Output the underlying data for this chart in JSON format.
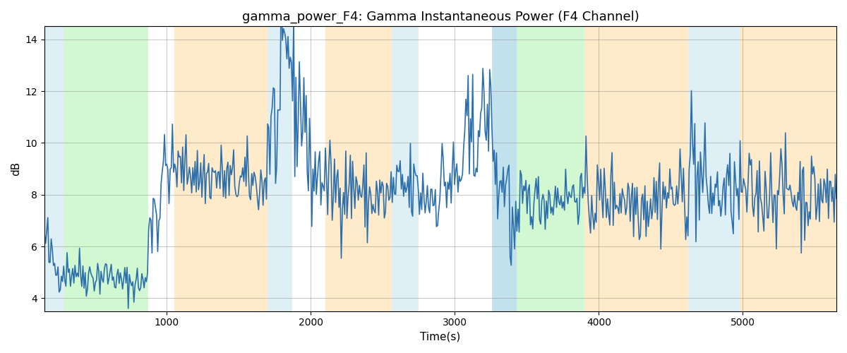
{
  "title": "gamma_power_F4: Gamma Instantaneous Power (F4 Channel)",
  "xlabel": "Time(s)",
  "ylabel": "dB",
  "ylim": [
    3.5,
    14.5
  ],
  "xlim": [
    150,
    5650
  ],
  "bg_regions": [
    {
      "xstart": 150,
      "xend": 290,
      "color": "#add8e6",
      "alpha": 0.4
    },
    {
      "xstart": 290,
      "xend": 870,
      "color": "#90ee90",
      "alpha": 0.4
    },
    {
      "xstart": 1050,
      "xend": 1700,
      "color": "#ffdaa0",
      "alpha": 0.55
    },
    {
      "xstart": 1700,
      "xend": 1870,
      "color": "#add8e6",
      "alpha": 0.4
    },
    {
      "xstart": 2100,
      "xend": 2560,
      "color": "#ffdaa0",
      "alpha": 0.55
    },
    {
      "xstart": 2560,
      "xend": 2750,
      "color": "#add8e6",
      "alpha": 0.4
    },
    {
      "xstart": 3260,
      "xend": 3430,
      "color": "#add8e6",
      "alpha": 0.75
    },
    {
      "xstart": 3430,
      "xend": 3900,
      "color": "#90ee90",
      "alpha": 0.4
    },
    {
      "xstart": 3900,
      "xend": 4150,
      "color": "#ffdaa0",
      "alpha": 0.55
    },
    {
      "xstart": 4150,
      "xend": 4620,
      "color": "#ffdaa0",
      "alpha": 0.55
    },
    {
      "xstart": 4620,
      "xend": 4980,
      "color": "#add8e6",
      "alpha": 0.4
    },
    {
      "xstart": 4980,
      "xend": 5650,
      "color": "#ffdaa0",
      "alpha": 0.55
    }
  ],
  "line_color": "#2c6fad",
  "line_width": 1.2,
  "xticks": [
    1000,
    2000,
    3000,
    4000,
    5000
  ],
  "yticks": [
    4,
    6,
    8,
    10,
    12,
    14
  ],
  "title_fontsize": 13,
  "label_fontsize": 11,
  "tick_fontsize": 10,
  "grid_color": "gray",
  "grid_alpha": 0.6,
  "grid_lw": 0.5
}
